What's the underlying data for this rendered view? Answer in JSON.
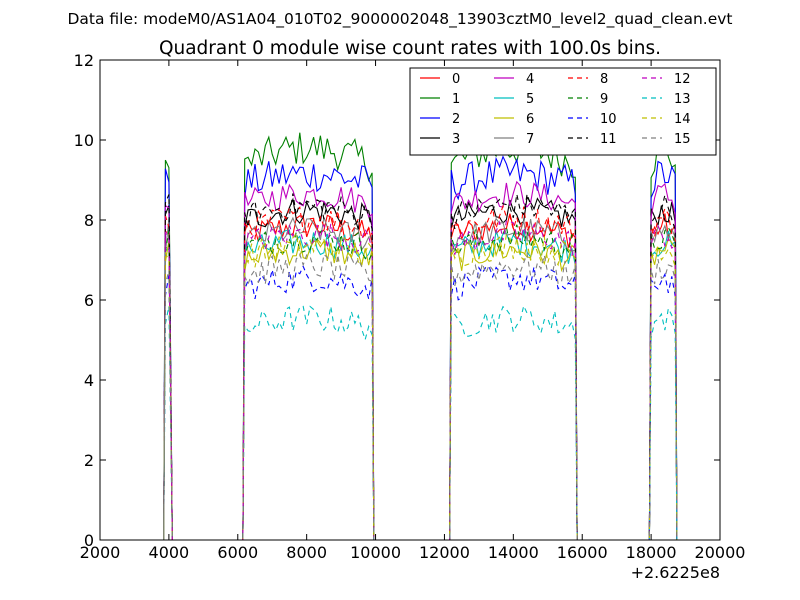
{
  "chart_data": {
    "type": "line",
    "suptitle": "Data file: modeM0/AS1A04_010T02_9000002048_13903cztM0_level2_quad_clean.evt",
    "title": "Quadrant 0 module wise count rates with 100.0s bins.",
    "xlabel": "",
    "ylabel": "",
    "x_offset_label": "+2.6225e8",
    "xlim": [
      2000,
      20000
    ],
    "ylim": [
      0,
      12
    ],
    "xticks": [
      2000,
      4000,
      6000,
      8000,
      10000,
      12000,
      14000,
      16000,
      18000,
      20000
    ],
    "yticks": [
      0,
      2,
      4,
      6,
      8,
      10,
      12
    ],
    "grid": false,
    "legend_position": "top-right",
    "legend_columns": 4,
    "segments": [
      {
        "start": 3900,
        "end": 4050
      },
      {
        "start": 6200,
        "end": 9900
      },
      {
        "start": 12200,
        "end": 15800
      },
      {
        "start": 18000,
        "end": 18700
      }
    ],
    "series": [
      {
        "name": "0",
        "color": "#ff0000",
        "dash": "solid",
        "level": 7.6
      },
      {
        "name": "1",
        "color": "#008000",
        "dash": "solid",
        "level": 9.4
      },
      {
        "name": "2",
        "color": "#0000ff",
        "dash": "solid",
        "level": 8.9
      },
      {
        "name": "3",
        "color": "#000000",
        "dash": "solid",
        "level": 8.0
      },
      {
        "name": "4",
        "color": "#bf00bf",
        "dash": "solid",
        "level": 8.4
      },
      {
        "name": "5",
        "color": "#00bfbf",
        "dash": "solid",
        "level": 7.2
      },
      {
        "name": "6",
        "color": "#bfbf00",
        "dash": "solid",
        "level": 7.0
      },
      {
        "name": "7",
        "color": "#808080",
        "dash": "solid",
        "level": 7.5
      },
      {
        "name": "8",
        "color": "#ff0000",
        "dash": "dashed",
        "level": 7.8
      },
      {
        "name": "9",
        "color": "#008000",
        "dash": "dashed",
        "level": 7.3
      },
      {
        "name": "10",
        "color": "#0000ff",
        "dash": "dashed",
        "level": 6.3
      },
      {
        "name": "11",
        "color": "#000000",
        "dash": "dashed",
        "level": 8.1
      },
      {
        "name": "12",
        "color": "#bf00bf",
        "dash": "dashed",
        "level": 7.4
      },
      {
        "name": "13",
        "color": "#00bfbf",
        "dash": "dashed",
        "level": 5.3
      },
      {
        "name": "14",
        "color": "#bfbf00",
        "dash": "dashed",
        "level": 7.1
      },
      {
        "name": "15",
        "color": "#808080",
        "dash": "dashed",
        "level": 6.6
      }
    ]
  }
}
